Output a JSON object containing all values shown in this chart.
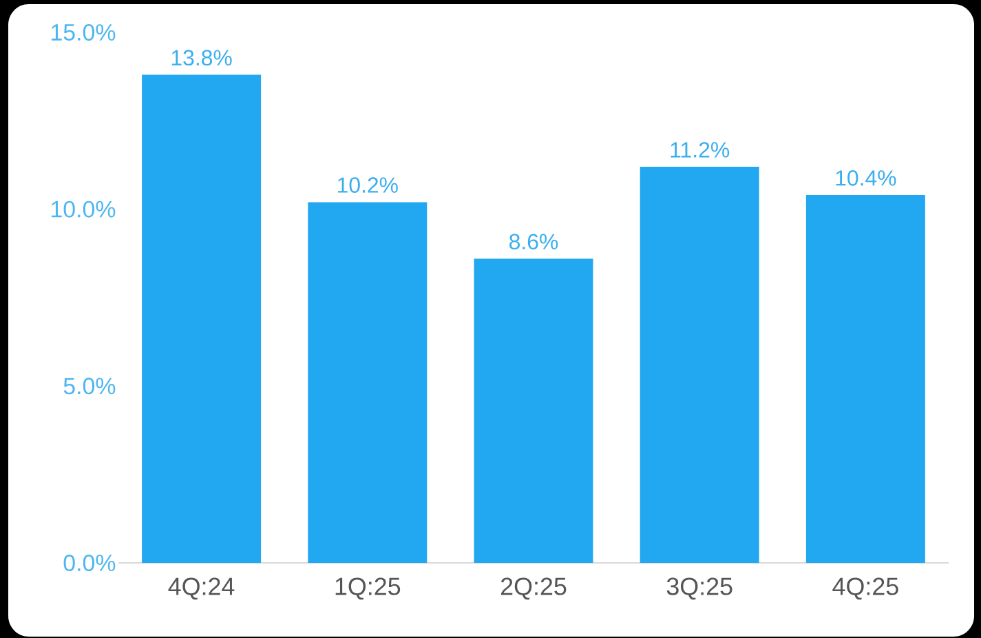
{
  "chart_data": {
    "type": "bar",
    "categories": [
      "4Q:24",
      "1Q:25",
      "2Q:25",
      "3Q:25",
      "4Q:25"
    ],
    "values": [
      13.8,
      10.2,
      8.6,
      11.2,
      10.4
    ],
    "value_labels": [
      "13.8%",
      "10.2%",
      "8.6%",
      "11.2%",
      "10.4%"
    ],
    "color": "#22a8f0",
    "ylim": [
      0,
      15
    ],
    "yticks": [
      {
        "value": 0,
        "label": "0.0%"
      },
      {
        "value": 5,
        "label": "5.0%"
      },
      {
        "value": 10,
        "label": "10.0%"
      },
      {
        "value": 15,
        "label": "15.0%"
      }
    ],
    "grid": false
  }
}
